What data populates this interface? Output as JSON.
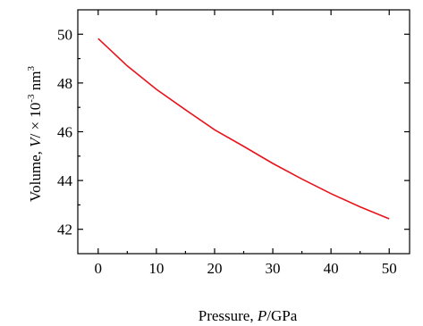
{
  "chart_data": {
    "type": "line",
    "title": "",
    "xlabel": {
      "prefix": "Pressure, ",
      "var": "P",
      "suffix": "/GPa"
    },
    "ylabel": {
      "prefix": "Volume, ",
      "var": "V",
      "mid": "/ × 10",
      "exp": "-3",
      "suffix": " nm",
      "unitExp": "3"
    },
    "xlim": [
      -3.5,
      53.5
    ],
    "ylim": [
      41.0,
      51.0
    ],
    "xticks": [
      0,
      10,
      20,
      30,
      40,
      50
    ],
    "yticks": [
      42,
      44,
      46,
      48,
      50
    ],
    "xtick_labels": [
      "0",
      "10",
      "20",
      "30",
      "40",
      "50"
    ],
    "ytick_labels": [
      "42",
      "44",
      "46",
      "48",
      "50"
    ],
    "grid": false,
    "legend": "none",
    "series": [
      {
        "color": "#e8141b",
        "x": [
          0,
          5,
          10,
          15,
          20,
          25,
          30,
          35,
          40,
          45,
          50
        ],
        "y": [
          49.82,
          48.7,
          47.74,
          46.9,
          46.08,
          45.4,
          44.7,
          44.06,
          43.46,
          42.92,
          42.43
        ]
      }
    ]
  }
}
